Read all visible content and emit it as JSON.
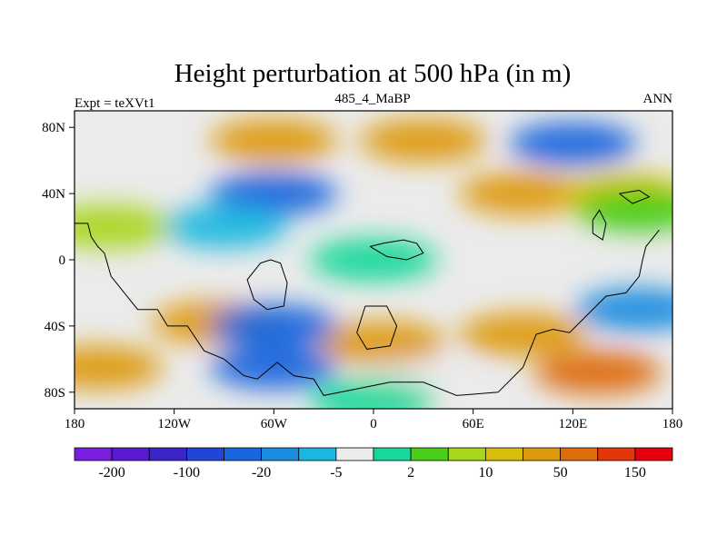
{
  "chart_data": {
    "type": "contour-map",
    "title": "Height perturbation at 500 hPa (in m)",
    "left_label": "Expt = teXVt1",
    "center_label": "485_4_MaBP",
    "right_label": "ANN",
    "x_ticks": [
      {
        "value": -180,
        "label": "180"
      },
      {
        "value": -120,
        "label": "120W"
      },
      {
        "value": -60,
        "label": "60W"
      },
      {
        "value": 0,
        "label": "0"
      },
      {
        "value": 60,
        "label": "60E"
      },
      {
        "value": 120,
        "label": "120E"
      },
      {
        "value": 180,
        "label": "180"
      }
    ],
    "y_ticks": [
      {
        "value": 80,
        "label": "80N"
      },
      {
        "value": 40,
        "label": "40N"
      },
      {
        "value": 0,
        "label": "0"
      },
      {
        "value": -40,
        "label": "40S"
      },
      {
        "value": -80,
        "label": "80S"
      }
    ],
    "xlim": [
      -180,
      180
    ],
    "ylim": [
      -90,
      90
    ],
    "colorbar": {
      "colors": [
        "#7a1fe0",
        "#5a1ad2",
        "#3b24c8",
        "#2045d8",
        "#1a67dd",
        "#1c8ce0",
        "#1ab8e0",
        "#ebebeb",
        "#15d89a",
        "#49cf1a",
        "#a8d61c",
        "#d8bd0d",
        "#de9a0d",
        "#de6b0d",
        "#e3360a",
        "#e8000e"
      ],
      "levels": [
        -200,
        -150,
        -100,
        -50,
        -20,
        -10,
        -5,
        -2,
        2,
        5,
        10,
        20,
        50,
        100,
        150
      ],
      "labeled": [
        {
          "index": 0,
          "label": "-200"
        },
        {
          "index": 2,
          "label": "-100"
        },
        {
          "index": 4,
          "label": "-20"
        },
        {
          "index": 6,
          "label": "-5"
        },
        {
          "index": 8,
          "label": "2"
        },
        {
          "index": 10,
          "label": "10"
        },
        {
          "index": 12,
          "label": "50"
        },
        {
          "index": 14,
          "label": "150"
        }
      ]
    },
    "field": {
      "bands": [
        {
          "lat": 72,
          "lon": -60,
          "value": 30
        },
        {
          "lat": 72,
          "lon": 30,
          "value": 25
        },
        {
          "lat": 70,
          "lon": 120,
          "value": -30
        },
        {
          "lat": 40,
          "lon": -60,
          "value": -30
        },
        {
          "lat": 40,
          "lon": 90,
          "value": 25
        },
        {
          "lat": 40,
          "lon": 150,
          "value": 10
        },
        {
          "lat": 20,
          "lon": -90,
          "value": -10
        },
        {
          "lat": 20,
          "lon": -160,
          "value": 5
        },
        {
          "lat": 30,
          "lon": 160,
          "value": 3
        },
        {
          "lat": 0,
          "lon": 0,
          "value": 0
        },
        {
          "lat": -38,
          "lon": -95,
          "value": 30
        },
        {
          "lat": -50,
          "lon": 5,
          "value": 45
        },
        {
          "lat": -45,
          "lon": 90,
          "value": 20
        },
        {
          "lat": -30,
          "lon": 160,
          "value": -20
        },
        {
          "lat": -40,
          "lon": -60,
          "value": -40
        },
        {
          "lat": -65,
          "lon": -165,
          "value": 25
        },
        {
          "lat": -65,
          "lon": -60,
          "value": -30
        },
        {
          "lat": -68,
          "lon": 135,
          "value": 70
        },
        {
          "lat": -75,
          "lon": 30,
          "value": -5
        },
        {
          "lat": -85,
          "lon": 0,
          "value": 0
        }
      ]
    }
  }
}
